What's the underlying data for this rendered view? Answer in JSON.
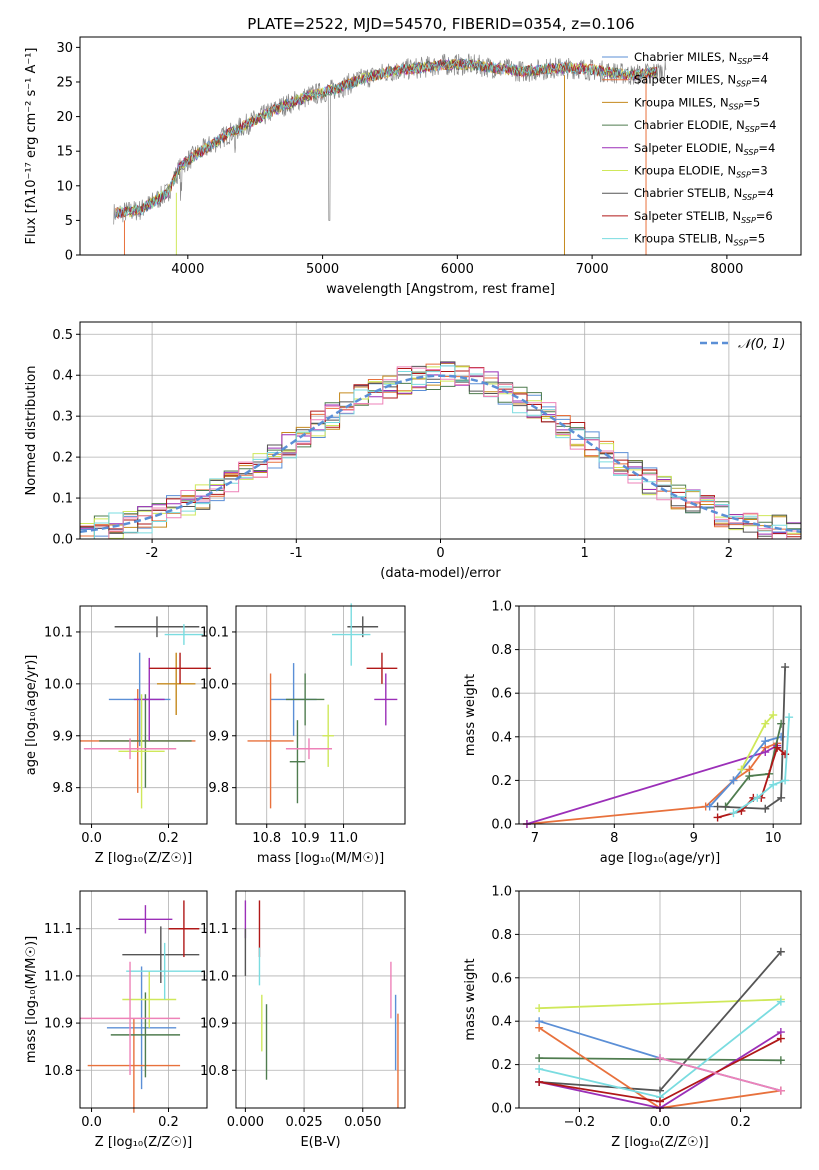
{
  "figure_title": "PLATE=2522, MJD=54570, FIBERID=0354, z=0.106",
  "colors": {
    "chabrier_miles": "#5b8fd6",
    "salpeter_miles": "#e8713c",
    "kroupa_miles": "#c58a1e",
    "chabrier_elodie": "#4f7c4f",
    "salpeter_elodie": "#9b2fb8",
    "kroupa_elodie": "#cfe85a",
    "chabrier_stelib": "#555555",
    "salpeter_stelib": "#b01818",
    "kroupa_stelib": "#7adce0",
    "normal": "#5b8fd6",
    "pink": "#ee82b8"
  },
  "chart_data": [
    {
      "id": "spectrum",
      "type": "line",
      "title": "PLATE=2522, MJD=54570, FIBERID=0354, z=0.106",
      "xlabel": "wavelength [Angstrom, rest frame]",
      "ylabel": "Flux [fλ10⁻¹⁷ erg cm⁻² s⁻¹ A⁻¹]",
      "xlim": [
        3200,
        8550
      ],
      "ylim": [
        0,
        31.5
      ],
      "xticks": [
        4000,
        5000,
        6000,
        7000,
        8000
      ],
      "yticks": [
        0,
        5,
        10,
        15,
        20,
        25,
        30
      ],
      "legend_placement": "right",
      "legend": [
        {
          "name": "Chabrier MILES, N",
          "sub": "SSP",
          "tail": "=4",
          "color": "#5b8fd6"
        },
        {
          "name": "Salpeter MILES, N",
          "sub": "SSP",
          "tail": "=4",
          "color": "#e8713c"
        },
        {
          "name": "Kroupa MILES, N",
          "sub": "SSP",
          "tail": "=5",
          "color": "#c58a1e"
        },
        {
          "name": "Chabrier ELODIE, N",
          "sub": "SSP",
          "tail": "=4",
          "color": "#4f7c4f"
        },
        {
          "name": "Salpeter ELODIE, N",
          "sub": "SSP",
          "tail": "=4",
          "color": "#9b2fb8"
        },
        {
          "name": "Kroupa ELODIE, N",
          "sub": "SSP",
          "tail": "=3",
          "color": "#cfe85a"
        },
        {
          "name": "Chabrier STELIB, N",
          "sub": "SSP",
          "tail": "=4",
          "color": "#555555"
        },
        {
          "name": "Salpeter STELIB, N",
          "sub": "SSP",
          "tail": "=6",
          "color": "#b01818"
        },
        {
          "name": "Kroupa STELIB, N",
          "sub": "SSP",
          "tail": "=5",
          "color": "#7adce0"
        }
      ],
      "continuum": {
        "x": [
          3450,
          3650,
          3850,
          3950,
          4100,
          4300,
          4500,
          4700,
          4900,
          5100,
          5300,
          5500,
          5700,
          5900,
          6100,
          6300,
          6500,
          6700,
          6900,
          7100,
          7300,
          7500
        ],
        "y": [
          6,
          6.5,
          9,
          13,
          15,
          17.5,
          19.5,
          21.5,
          23,
          24,
          25.5,
          26.5,
          27,
          27.5,
          27.5,
          27,
          26.5,
          27,
          27,
          26.5,
          26,
          26.5
        ]
      }
    },
    {
      "id": "residuals",
      "type": "line",
      "xlabel": "(data-model)/error",
      "ylabel": "Normed distribution",
      "xlim": [
        -2.5,
        2.5
      ],
      "ylim": [
        0,
        0.53
      ],
      "xticks": [
        -2,
        -1,
        0,
        1,
        2
      ],
      "yticks": [
        0.0,
        0.1,
        0.2,
        0.3,
        0.4,
        0.5
      ],
      "legend_placement": "top-right",
      "legend": [
        {
          "name": "𝒩(0, 1)",
          "color": "#5b8fd6",
          "dashed": true
        }
      ],
      "grid": true,
      "bin_width": 0.1
    },
    {
      "id": "age_vs_Z",
      "type": "scatter",
      "xlabel": "Z [log₁₀(Z/Z☉)]",
      "ylabel": "age  [log₁₀(age/yr)]",
      "xlim": [
        -0.03,
        0.3
      ],
      "ylim": [
        9.73,
        10.15
      ],
      "xticks": [
        0.0,
        0.2
      ],
      "yticks": [
        9.8,
        9.9,
        10.0,
        10.1
      ],
      "points": [
        {
          "x": 0.125,
          "xerr": 0.08,
          "y": 9.97,
          "yerr": 0.09,
          "color": "#5b8fd6"
        },
        {
          "x": 0.12,
          "xerr": 0.15,
          "y": 9.89,
          "yerr": 0.1,
          "color": "#e8713c"
        },
        {
          "x": 0.22,
          "xerr": 0.05,
          "y": 10.0,
          "yerr": 0.06,
          "color": "#c58a1e"
        },
        {
          "x": 0.14,
          "xerr": 0.12,
          "y": 9.89,
          "yerr": 0.09,
          "color": "#4f7c4f"
        },
        {
          "x": 0.15,
          "xerr": 0.04,
          "y": 9.97,
          "yerr": 0.08,
          "color": "#9b2fb8"
        },
        {
          "x": 0.13,
          "xerr": 0.06,
          "y": 9.87,
          "yerr": 0.11,
          "color": "#cfe85a"
        },
        {
          "x": 0.17,
          "xerr": 0.11,
          "y": 10.11,
          "yerr": 0.02,
          "color": "#555555"
        },
        {
          "x": 0.23,
          "xerr": 0.08,
          "y": 10.03,
          "yerr": 0.03,
          "color": "#b01818"
        },
        {
          "x": 0.24,
          "xerr": 0.05,
          "y": 10.095,
          "yerr": 0.02,
          "color": "#7adce0"
        },
        {
          "x": 0.1,
          "xerr": 0.12,
          "y": 9.875,
          "yerr": 0.02,
          "color": "#ee82b8"
        }
      ]
    },
    {
      "id": "age_vs_mass",
      "type": "scatter",
      "xlabel": "mass [log₁₀(M/M☉)]",
      "ylabel": "",
      "xlim": [
        10.72,
        11.16
      ],
      "ylim": [
        9.73,
        10.15
      ],
      "xticks": [
        10.8,
        10.9,
        11.0
      ],
      "yticks": [
        9.8,
        9.9,
        10.0,
        10.1
      ],
      "points": [
        {
          "x": 10.87,
          "xerr": 0.06,
          "y": 9.97,
          "yerr": 0.07,
          "color": "#5b8fd6"
        },
        {
          "x": 10.81,
          "xerr": 0.06,
          "y": 9.89,
          "yerr": 0.13,
          "color": "#e8713c"
        },
        {
          "x": 10.9,
          "xerr": 0.05,
          "y": 9.97,
          "yerr": 0.05,
          "color": "#4f7c4f"
        },
        {
          "x": 10.88,
          "xerr": 0.02,
          "y": 9.85,
          "yerr": 0.08,
          "color": "#4f7c4f"
        },
        {
          "x": 10.96,
          "xerr": 0.015,
          "y": 9.9,
          "yerr": 0.06,
          "color": "#cfe85a"
        },
        {
          "x": 11.05,
          "xerr": 0.04,
          "y": 10.11,
          "yerr": 0.02,
          "color": "#555555"
        },
        {
          "x": 11.1,
          "xerr": 0.04,
          "y": 10.03,
          "yerr": 0.03,
          "color": "#b01818"
        },
        {
          "x": 11.11,
          "xerr": 0.03,
          "y": 9.97,
          "yerr": 0.05,
          "color": "#9b2fb8"
        },
        {
          "x": 11.02,
          "xerr": 0.05,
          "y": 10.095,
          "yerr": 0.06,
          "color": "#7adce0"
        },
        {
          "x": 10.91,
          "xerr": 0.06,
          "y": 9.875,
          "yerr": 0.02,
          "color": "#ee82b8"
        }
      ]
    },
    {
      "id": "weight_vs_age",
      "type": "line",
      "xlabel": "age  [log₁₀(age/yr)]",
      "ylabel": "mass weight",
      "xlim": [
        6.8,
        10.35
      ],
      "ylim": [
        0,
        1.0
      ],
      "xticks": [
        7,
        8,
        9,
        10
      ],
      "yticks": [
        0.0,
        0.2,
        0.4,
        0.6,
        0.8,
        1.0
      ],
      "series": [
        {
          "color": "#e8713c",
          "x": [
            6.9,
            9.15,
            9.5,
            9.7,
            9.9,
            10.05
          ],
          "y": [
            0.0,
            0.08,
            0.2,
            0.25,
            0.35,
            0.37
          ]
        },
        {
          "color": "#9b2fb8",
          "x": [
            6.9,
            9.9,
            10.05
          ],
          "y": [
            0.0,
            0.33,
            0.36
          ]
        },
        {
          "color": "#5b8fd6",
          "x": [
            9.2,
            9.5,
            9.9,
            10.1
          ],
          "y": [
            0.08,
            0.2,
            0.38,
            0.4
          ]
        },
        {
          "color": "#cfe85a",
          "x": [
            9.6,
            9.9,
            10.0
          ],
          "y": [
            0.25,
            0.46,
            0.5
          ]
        },
        {
          "color": "#4f7c4f",
          "x": [
            9.4,
            9.7,
            9.95,
            10.1
          ],
          "y": [
            0.08,
            0.22,
            0.23,
            0.46
          ]
        },
        {
          "color": "#555555",
          "x": [
            9.3,
            9.9,
            10.1,
            10.15
          ],
          "y": [
            0.08,
            0.07,
            0.12,
            0.72
          ]
        },
        {
          "color": "#b01818",
          "x": [
            9.3,
            9.6,
            9.75,
            9.85,
            10.05,
            10.15
          ],
          "y": [
            0.03,
            0.06,
            0.12,
            0.12,
            0.35,
            0.32
          ]
        },
        {
          "color": "#7adce0",
          "x": [
            9.5,
            9.8,
            10.0,
            10.15,
            10.2
          ],
          "y": [
            0.05,
            0.12,
            0.18,
            0.2,
            0.49
          ]
        }
      ]
    },
    {
      "id": "mass_vs_Z",
      "type": "scatter",
      "xlabel": "Z [log₁₀(Z/Z☉)]",
      "ylabel": "mass [log₁₀(M/M☉)]",
      "xlim": [
        -0.03,
        0.3
      ],
      "ylim": [
        10.72,
        11.18
      ],
      "xticks": [
        0.0,
        0.2
      ],
      "yticks": [
        10.8,
        10.9,
        11.0,
        11.1
      ],
      "points": [
        {
          "x": 0.13,
          "xerr": 0.09,
          "y": 10.89,
          "yerr": 0.13,
          "color": "#5b8fd6"
        },
        {
          "x": 0.11,
          "xerr": 0.12,
          "y": 10.81,
          "yerr": 0.1,
          "color": "#e8713c"
        },
        {
          "x": 0.14,
          "xerr": 0.09,
          "y": 10.875,
          "yerr": 0.09,
          "color": "#4f7c4f"
        },
        {
          "x": 0.14,
          "xerr": 0.07,
          "y": 11.12,
          "yerr": 0.03,
          "color": "#9b2fb8"
        },
        {
          "x": 0.15,
          "xerr": 0.07,
          "y": 10.95,
          "yerr": 0.06,
          "color": "#cfe85a"
        },
        {
          "x": 0.18,
          "xerr": 0.1,
          "y": 11.045,
          "yerr": 0.06,
          "color": "#555555"
        },
        {
          "x": 0.24,
          "xerr": 0.04,
          "y": 11.1,
          "yerr": 0.06,
          "color": "#b01818"
        },
        {
          "x": 0.19,
          "xerr": 0.1,
          "y": 11.01,
          "yerr": 0.06,
          "color": "#7adce0"
        },
        {
          "x": 0.1,
          "xerr": 0.13,
          "y": 10.91,
          "yerr": 0.12,
          "color": "#ee82b8"
        }
      ]
    },
    {
      "id": "mass_vs_EBV",
      "type": "scatter",
      "xlabel": "E(B-V)",
      "ylabel": "",
      "xlim": [
        -0.004,
        0.068
      ],
      "ylim": [
        10.72,
        11.18
      ],
      "xticks": [
        0.0,
        0.025,
        0.05
      ],
      "xticklabels": [
        "0.000",
        "0.025",
        "0.050"
      ],
      "yticks": [
        10.8,
        10.9,
        11.0,
        11.1
      ],
      "points": [
        {
          "x": 0.0,
          "y": 11.12,
          "yerr": 0.04,
          "color": "#9b2fb8"
        },
        {
          "x": 0.0,
          "y": 11.05,
          "yerr": 0.05,
          "color": "#555555"
        },
        {
          "x": 0.006,
          "y": 11.1,
          "yerr": 0.06,
          "color": "#b01818"
        },
        {
          "x": 0.006,
          "y": 11.02,
          "yerr": 0.04,
          "color": "#7adce0"
        },
        {
          "x": 0.007,
          "y": 10.9,
          "yerr": 0.06,
          "color": "#cfe85a"
        },
        {
          "x": 0.009,
          "y": 10.86,
          "yerr": 0.08,
          "color": "#4f7c4f"
        },
        {
          "x": 0.062,
          "y": 10.97,
          "yerr": 0.06,
          "color": "#ee82b8"
        },
        {
          "x": 0.064,
          "y": 10.88,
          "yerr": 0.08,
          "color": "#5b8fd6"
        },
        {
          "x": 0.065,
          "y": 10.82,
          "yerr": 0.1,
          "color": "#e8713c"
        }
      ]
    },
    {
      "id": "weight_vs_Z",
      "type": "line",
      "xlabel": "Z [log₁₀(Z/Z☉)]",
      "ylabel": "mass weight",
      "xlim": [
        -0.35,
        0.35
      ],
      "ylim": [
        0,
        1.0
      ],
      "xticks": [
        -0.2,
        0.0,
        0.2
      ],
      "xticklabels": [
        "−0.2",
        "0.0",
        "0.2"
      ],
      "yticks": [
        0.0,
        0.2,
        0.4,
        0.6,
        0.8,
        1.0
      ],
      "series": [
        {
          "color": "#cfe85a",
          "x": [
            -0.3,
            0.3
          ],
          "y": [
            0.46,
            0.5
          ]
        },
        {
          "color": "#555555",
          "x": [
            -0.3,
            0.0,
            0.3
          ],
          "y": [
            0.12,
            0.08,
            0.72
          ]
        },
        {
          "color": "#4f7c4f",
          "x": [
            -0.3,
            0.3
          ],
          "y": [
            0.23,
            0.22
          ]
        },
        {
          "color": "#5b8fd6",
          "x": [
            -0.3,
            0.0,
            0.3
          ],
          "y": [
            0.4,
            0.23,
            0.08
          ]
        },
        {
          "color": "#e8713c",
          "x": [
            -0.3,
            0.0,
            0.3
          ],
          "y": [
            0.37,
            0.0,
            0.08
          ]
        },
        {
          "color": "#9b2fb8",
          "x": [
            -0.3,
            0.0,
            0.3
          ],
          "y": [
            0.12,
            0.0,
            0.35
          ]
        },
        {
          "color": "#7adce0",
          "x": [
            -0.3,
            0.0,
            0.3
          ],
          "y": [
            0.18,
            0.05,
            0.49
          ]
        },
        {
          "color": "#b01818",
          "x": [
            -0.3,
            0.0,
            0.3
          ],
          "y": [
            0.12,
            0.03,
            0.32
          ]
        },
        {
          "color": "#ee82b8",
          "x": [
            0.0,
            0.3
          ],
          "y": [
            0.23,
            0.08
          ]
        }
      ]
    }
  ]
}
